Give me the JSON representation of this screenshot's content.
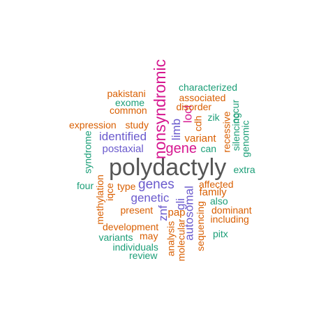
{
  "colors": {
    "gray": "#555555",
    "purple": "#6a5acd",
    "magenta": "#d6168f",
    "orange": "#d95f02",
    "teal": "#1b9e77"
  },
  "words": [
    {
      "text": "polydactyly",
      "color": "gray"
    },
    {
      "text": "nonsyndromic",
      "color": "magenta"
    },
    {
      "text": "gene",
      "color": "magenta"
    },
    {
      "text": "genes",
      "color": "purple"
    },
    {
      "text": "identified",
      "color": "purple"
    },
    {
      "text": "postaxial",
      "color": "purple"
    },
    {
      "text": "genetic",
      "color": "purple"
    },
    {
      "text": "limb",
      "color": "purple"
    },
    {
      "text": "gli",
      "color": "purple"
    },
    {
      "text": "znf",
      "color": "purple"
    },
    {
      "text": "autosomal",
      "color": "purple"
    },
    {
      "text": "loci",
      "color": "magenta"
    },
    {
      "text": "variant",
      "color": "orange"
    },
    {
      "text": "family",
      "color": "orange"
    },
    {
      "text": "pap",
      "color": "orange"
    },
    {
      "text": "characterized",
      "color": "teal"
    },
    {
      "text": "associated",
      "color": "orange"
    },
    {
      "text": "pakistani",
      "color": "orange"
    },
    {
      "text": "disorder",
      "color": "orange"
    },
    {
      "text": "exome",
      "color": "teal"
    },
    {
      "text": "common",
      "color": "orange"
    },
    {
      "text": "expression",
      "color": "orange"
    },
    {
      "text": "study",
      "color": "orange"
    },
    {
      "text": "cdh",
      "color": "orange"
    },
    {
      "text": "recessive",
      "color": "orange"
    },
    {
      "text": "zik",
      "color": "teal"
    },
    {
      "text": "occur",
      "color": "teal"
    },
    {
      "text": "silencing",
      "color": "teal"
    },
    {
      "text": "genomic",
      "color": "teal"
    },
    {
      "text": "can",
      "color": "teal"
    },
    {
      "text": "syndrome",
      "color": "teal"
    },
    {
      "text": "extra",
      "color": "teal"
    },
    {
      "text": "four",
      "color": "teal"
    },
    {
      "text": "methylation",
      "color": "orange"
    },
    {
      "text": "iqce",
      "color": "orange"
    },
    {
      "text": "type",
      "color": "orange"
    },
    {
      "text": "affected",
      "color": "orange"
    },
    {
      "text": "also",
      "color": "teal"
    },
    {
      "text": "present",
      "color": "orange"
    },
    {
      "text": "sequencing",
      "color": "orange"
    },
    {
      "text": "dominant",
      "color": "orange"
    },
    {
      "text": "including",
      "color": "orange"
    },
    {
      "text": "development",
      "color": "orange"
    },
    {
      "text": "analysis",
      "color": "orange"
    },
    {
      "text": "pitx",
      "color": "teal"
    },
    {
      "text": "variants",
      "color": "teal"
    },
    {
      "text": "may",
      "color": "orange"
    },
    {
      "text": "molecular",
      "color": "orange"
    },
    {
      "text": "individuals",
      "color": "teal"
    },
    {
      "text": "review",
      "color": "teal"
    }
  ]
}
